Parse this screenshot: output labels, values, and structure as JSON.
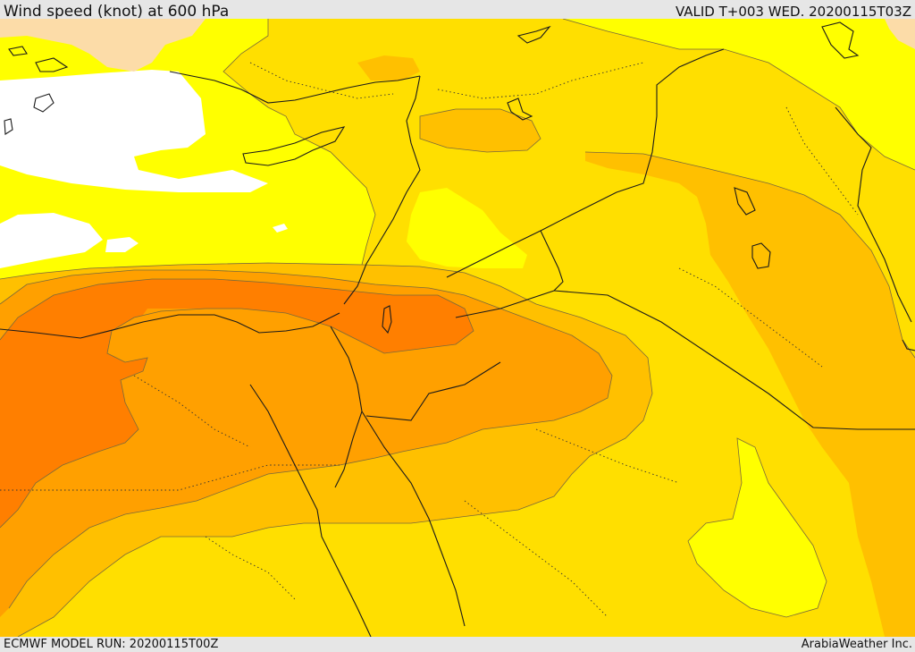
{
  "header": {
    "title": "Wind speed (knot) at 600 hPa",
    "valid": "VALID T+003 WED. 20200115T03Z"
  },
  "footer": {
    "model_run": "ECMWF MODEL RUN: 20200115T00Z",
    "credit": "ArabiaWeather Inc."
  },
  "map": {
    "variable": "wind speed",
    "unit": "knot",
    "level": "600 hPa",
    "palette": {
      "land_outside": "#fcdca8",
      "band_calm": "#ffffff",
      "band_1": "#ffff00",
      "band_2": "#ffdf00",
      "band_3": "#ffc000",
      "band_4": "#ffa000",
      "band_5": "#ff7f00",
      "contour_line": "#7a6a3a",
      "border_line": "#1a1a1a"
    }
  }
}
